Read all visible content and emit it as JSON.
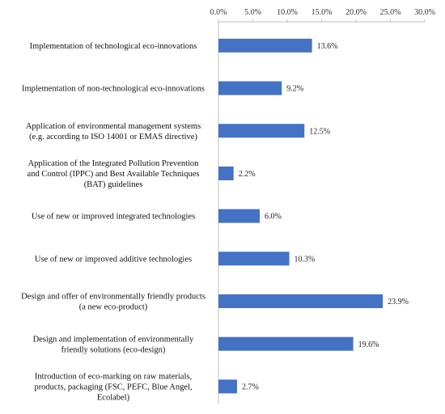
{
  "chart_data": {
    "type": "bar",
    "orientation": "horizontal",
    "categories": [
      [
        "Implementation of technological eco-innovations"
      ],
      [
        "Implementation of non-technological eco-innovations"
      ],
      [
        "Application of environmental management systems",
        "(e.g. according to ISO 14001 or EMAS directive)"
      ],
      [
        "Application of the Integrated Pollution Prevention",
        "and Control (IPPC) and Best Available Techniques",
        "(BAT) guidelines"
      ],
      [
        "Use of new or improved integrated technologies"
      ],
      [
        "Use of new or improved additive technologies"
      ],
      [
        "Design and offer of environmentally friendly products",
        "(a new eco-product)"
      ],
      [
        "Design and implementation of environmentally",
        "friendly solutions (eco-design)"
      ],
      [
        "Introduction of eco-marking on raw materials,",
        "products, packaging (FSC, PEFC, Blue Angel,",
        "Ecolabel)"
      ]
    ],
    "values": [
      13.6,
      9.2,
      12.5,
      2.2,
      6.0,
      10.3,
      23.9,
      19.6,
      2.7
    ],
    "value_labels": [
      "13.6%",
      "9.2%",
      "12.5%",
      "2.2%",
      "6.0%",
      "10.3%",
      "23.9%",
      "19.6%",
      "2.7%"
    ],
    "xticks": [
      0,
      5,
      10,
      15,
      20,
      25,
      30
    ],
    "xtick_labels": [
      "0.0%",
      "5.0%",
      "10.0%",
      "15.0%",
      "20.0%",
      "25.0%",
      "30.0%"
    ],
    "xlim": [
      0,
      30
    ],
    "axis_position": "top",
    "grid": false,
    "legend": "none",
    "title": "",
    "xlabel": "",
    "ylabel": "",
    "bar_color": "#4472C4",
    "axis_color": "#BFBFBF"
  }
}
